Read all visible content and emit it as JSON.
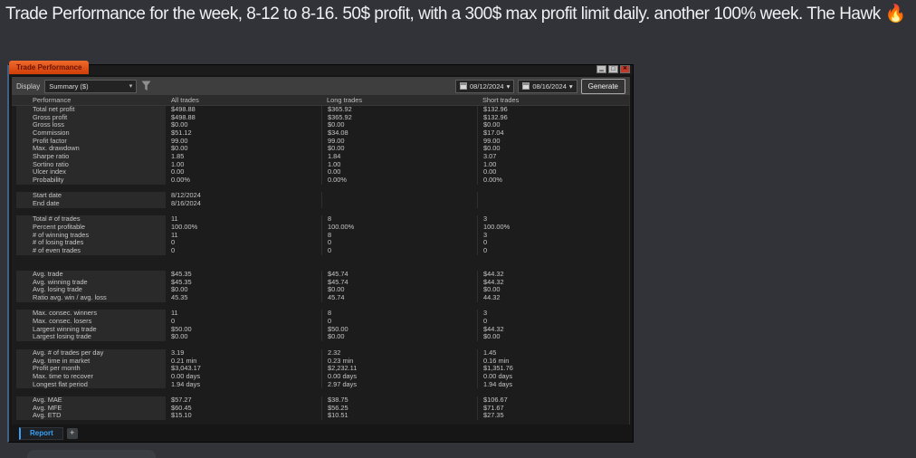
{
  "post": {
    "message": "Trade Performance for the week, 8-12 to 8-16. 50$ profit, with a 300$ max profit limit daily. another 100% week. The Hawk 🔥"
  },
  "window": {
    "title": "Trade Performance",
    "controls": [
      "minimize",
      "maximize",
      "close"
    ]
  },
  "toolbar": {
    "display_label": "Display",
    "display_value": "Summary ($)",
    "date_from": "08/12/2024",
    "date_to": "08/16/2024",
    "generate_label": "Generate"
  },
  "table": {
    "headers": [
      "Performance",
      "All trades",
      "Long trades",
      "Short trades"
    ],
    "rows": [
      {
        "label": "Total net profit",
        "all": "$498.88",
        "long": "$365.92",
        "short": "$132.96"
      },
      {
        "label": "Gross profit",
        "all": "$498.88",
        "long": "$365.92",
        "short": "$132.96"
      },
      {
        "label": "Gross loss",
        "all": "$0.00",
        "long": "$0.00",
        "short": "$0.00"
      },
      {
        "label": "Commission",
        "all": "$51.12",
        "long": "$34.08",
        "short": "$17.04"
      },
      {
        "label": "Profit factor",
        "all": "99.00",
        "long": "99.00",
        "short": "99.00"
      },
      {
        "label": "Max. drawdown",
        "all": "$0.00",
        "long": "$0.00",
        "short": "$0.00"
      },
      {
        "label": "Sharpe ratio",
        "all": "1.85",
        "long": "1.84",
        "short": "3.07"
      },
      {
        "label": "Sortino ratio",
        "all": "1.00",
        "long": "1.00",
        "short": "1.00"
      },
      {
        "label": "Ulcer index",
        "all": "0.00",
        "long": "0.00",
        "short": "0.00"
      },
      {
        "label": "Probability",
        "all": "0.00%",
        "long": "0.00%",
        "short": "0.00%"
      },
      {
        "spacer": true
      },
      {
        "label": "Start date",
        "all": "8/12/2024",
        "long": "",
        "short": ""
      },
      {
        "label": "End date",
        "all": "8/16/2024",
        "long": "",
        "short": ""
      },
      {
        "spacer": true
      },
      {
        "label": "Total # of trades",
        "all": "11",
        "long": "8",
        "short": "3"
      },
      {
        "label": "Percent profitable",
        "all": "100.00%",
        "long": "100.00%",
        "short": "100.00%"
      },
      {
        "label": "# of winning trades",
        "all": "11",
        "long": "8",
        "short": "3"
      },
      {
        "label": "# of losing trades",
        "all": "0",
        "long": "0",
        "short": "0"
      },
      {
        "label": "# of even trades",
        "all": "0",
        "long": "0",
        "short": "0"
      },
      {
        "spacer": true
      },
      {
        "spacer": true
      },
      {
        "label": "Avg. trade",
        "all": "$45.35",
        "long": "$45.74",
        "short": "$44.32"
      },
      {
        "label": "Avg. winning trade",
        "all": "$45.35",
        "long": "$45.74",
        "short": "$44.32"
      },
      {
        "label": "Avg. losing trade",
        "all": "$0.00",
        "long": "$0.00",
        "short": "$0.00"
      },
      {
        "label": "Ratio avg. win / avg. loss",
        "all": "45.35",
        "long": "45.74",
        "short": "44.32"
      },
      {
        "spacer": true
      },
      {
        "label": "Max. consec. winners",
        "all": "11",
        "long": "8",
        "short": "3"
      },
      {
        "label": "Max. consec. losers",
        "all": "0",
        "long": "0",
        "short": "0"
      },
      {
        "label": "Largest winning trade",
        "all": "$50.00",
        "long": "$50.00",
        "short": "$44.32"
      },
      {
        "label": "Largest losing trade",
        "all": "$0.00",
        "long": "$0.00",
        "short": "$0.00"
      },
      {
        "spacer": true
      },
      {
        "label": "Avg. # of trades per day",
        "all": "3.19",
        "long": "2.32",
        "short": "1.45"
      },
      {
        "label": "Avg. time in market",
        "all": "0.21 min",
        "long": "0.23 min",
        "short": "0.16 min"
      },
      {
        "label": "Profit per month",
        "all": "$3,043.17",
        "long": "$2,232.11",
        "short": "$1,351.76"
      },
      {
        "label": "Max. time to recover",
        "all": "0.00 days",
        "long": "0.00 days",
        "short": "0.00 days"
      },
      {
        "label": "Longest flat period",
        "all": "1.94 days",
        "long": "2.97 days",
        "short": "1.94 days"
      },
      {
        "spacer": true
      },
      {
        "label": "Avg. MAE",
        "all": "$57.27",
        "long": "$38.75",
        "short": "$106.67"
      },
      {
        "label": "Avg. MFE",
        "all": "$60.45",
        "long": "$56.25",
        "short": "$71.67"
      },
      {
        "label": "Avg. ETD",
        "all": "$15.10",
        "long": "$10.51",
        "short": "$27.35"
      }
    ]
  },
  "footer": {
    "report_tab_label": "Report",
    "add_tab_label": "+"
  },
  "colors": {
    "page_background": "#313338",
    "window_background": "#161616",
    "title_tab_orange": "#e25513",
    "toolbar_gray": "#3e3e3e",
    "report_tab_blue": "#3aa0f5",
    "close_button_red": "#bf3a28",
    "row_label_background": "#2a2a2a",
    "text_light": "#c6c6c6"
  }
}
